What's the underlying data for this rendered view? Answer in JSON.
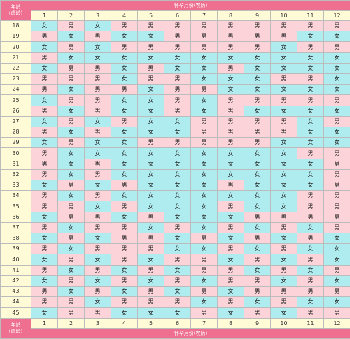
{
  "header": {
    "age_label": "年龄\n(虚龄)",
    "title": "怀孕月份(农历)"
  },
  "footer": {
    "age_label": "年龄\n(虚龄)",
    "title": "怀孕月份(农历)"
  },
  "months": [
    "1",
    "2",
    "3",
    "4",
    "5",
    "6",
    "7",
    "8",
    "9",
    "10",
    "11",
    "12"
  ],
  "colors": {
    "header_bg": "#ee6f90",
    "label_bg": "#fffbd6",
    "girl_bg": "#afecf0",
    "boy_bg": "#fcd3d9",
    "border": "#bcbcbc"
  },
  "rows": [
    {
      "age": "18",
      "cells": [
        "女",
        "男",
        "女",
        "男",
        "男",
        "男",
        "男",
        "男",
        "男",
        "男",
        "男",
        "男"
      ]
    },
    {
      "age": "19",
      "cells": [
        "男",
        "女",
        "男",
        "女",
        "女",
        "男",
        "男",
        "男",
        "男",
        "男",
        "女",
        "女"
      ]
    },
    {
      "age": "20",
      "cells": [
        "女",
        "男",
        "女",
        "男",
        "男",
        "男",
        "男",
        "男",
        "男",
        "女",
        "男",
        "男"
      ]
    },
    {
      "age": "21",
      "cells": [
        "男",
        "女",
        "女",
        "女",
        "女",
        "女",
        "女",
        "女",
        "女",
        "女",
        "女",
        "女"
      ]
    },
    {
      "age": "22",
      "cells": [
        "女",
        "男",
        "男",
        "女",
        "男",
        "女",
        "女",
        "男",
        "女",
        "女",
        "女",
        "女"
      ]
    },
    {
      "age": "23",
      "cells": [
        "男",
        "男",
        "男",
        "女",
        "男",
        "男",
        "女",
        "女",
        "女",
        "男",
        "男",
        "女"
      ]
    },
    {
      "age": "24",
      "cells": [
        "男",
        "女",
        "男",
        "男",
        "女",
        "男",
        "男",
        "女",
        "女",
        "女",
        "女",
        "女"
      ]
    },
    {
      "age": "25",
      "cells": [
        "女",
        "男",
        "男",
        "女",
        "女",
        "男",
        "女",
        "男",
        "男",
        "男",
        "男",
        "男"
      ]
    },
    {
      "age": "26",
      "cells": [
        "男",
        "女",
        "男",
        "女",
        "女",
        "男",
        "女",
        "男",
        "女",
        "女",
        "女",
        "女"
      ]
    },
    {
      "age": "27",
      "cells": [
        "女",
        "男",
        "女",
        "男",
        "女",
        "女",
        "男",
        "男",
        "男",
        "男",
        "女",
        "男"
      ]
    },
    {
      "age": "28",
      "cells": [
        "男",
        "女",
        "男",
        "女",
        "女",
        "女",
        "男",
        "男",
        "男",
        "男",
        "女",
        "女"
      ]
    },
    {
      "age": "29",
      "cells": [
        "女",
        "男",
        "女",
        "女",
        "男",
        "男",
        "男",
        "男",
        "男",
        "女",
        "女",
        "女"
      ]
    },
    {
      "age": "30",
      "cells": [
        "男",
        "女",
        "女",
        "女",
        "女",
        "女",
        "女",
        "女",
        "女",
        "女",
        "男",
        "男"
      ]
    },
    {
      "age": "31",
      "cells": [
        "男",
        "女",
        "男",
        "女",
        "女",
        "女",
        "女",
        "女",
        "女",
        "女",
        "女",
        "男"
      ]
    },
    {
      "age": "32",
      "cells": [
        "男",
        "女",
        "男",
        "女",
        "女",
        "女",
        "女",
        "女",
        "女",
        "女",
        "女",
        "男"
      ]
    },
    {
      "age": "33",
      "cells": [
        "女",
        "男",
        "女",
        "男",
        "女",
        "女",
        "女",
        "男",
        "女",
        "女",
        "女",
        "男"
      ]
    },
    {
      "age": "34",
      "cells": [
        "男",
        "女",
        "男",
        "女",
        "女",
        "女",
        "女",
        "女",
        "女",
        "女",
        "男",
        "男"
      ]
    },
    {
      "age": "35",
      "cells": [
        "男",
        "男",
        "女",
        "男",
        "女",
        "女",
        "女",
        "男",
        "女",
        "女",
        "男",
        "男"
      ]
    },
    {
      "age": "36",
      "cells": [
        "女",
        "男",
        "男",
        "女",
        "男",
        "女",
        "女",
        "女",
        "男",
        "男",
        "男",
        "男"
      ]
    },
    {
      "age": "37",
      "cells": [
        "男",
        "女",
        "男",
        "男",
        "女",
        "男",
        "女",
        "男",
        "女",
        "男",
        "女",
        "男"
      ]
    },
    {
      "age": "38",
      "cells": [
        "女",
        "男",
        "女",
        "男",
        "男",
        "女",
        "男",
        "女",
        "男",
        "女",
        "男",
        "女"
      ]
    },
    {
      "age": "39",
      "cells": [
        "男",
        "女",
        "男",
        "男",
        "男",
        "女",
        "女",
        "男",
        "女",
        "男",
        "女",
        "女"
      ]
    },
    {
      "age": "40",
      "cells": [
        "女",
        "男",
        "女",
        "男",
        "女",
        "男",
        "男",
        "女",
        "男",
        "女",
        "男",
        "女"
      ]
    },
    {
      "age": "41",
      "cells": [
        "男",
        "女",
        "男",
        "女",
        "男",
        "女",
        "男",
        "男",
        "女",
        "男",
        "女",
        "男"
      ]
    },
    {
      "age": "42",
      "cells": [
        "女",
        "男",
        "女",
        "男",
        "女",
        "男",
        "女",
        "男",
        "男",
        "女",
        "男",
        "女"
      ]
    },
    {
      "age": "43",
      "cells": [
        "男",
        "女",
        "男",
        "女",
        "男",
        "女",
        "男",
        "女",
        "男",
        "男",
        "男",
        "男"
      ]
    },
    {
      "age": "44",
      "cells": [
        "男",
        "男",
        "女",
        "男",
        "男",
        "男",
        "女",
        "男",
        "女",
        "男",
        "女",
        "女"
      ]
    },
    {
      "age": "45",
      "cells": [
        "女",
        "男",
        "男",
        "女",
        "女",
        "女",
        "男",
        "女",
        "男",
        "女",
        "男",
        "男"
      ]
    }
  ]
}
